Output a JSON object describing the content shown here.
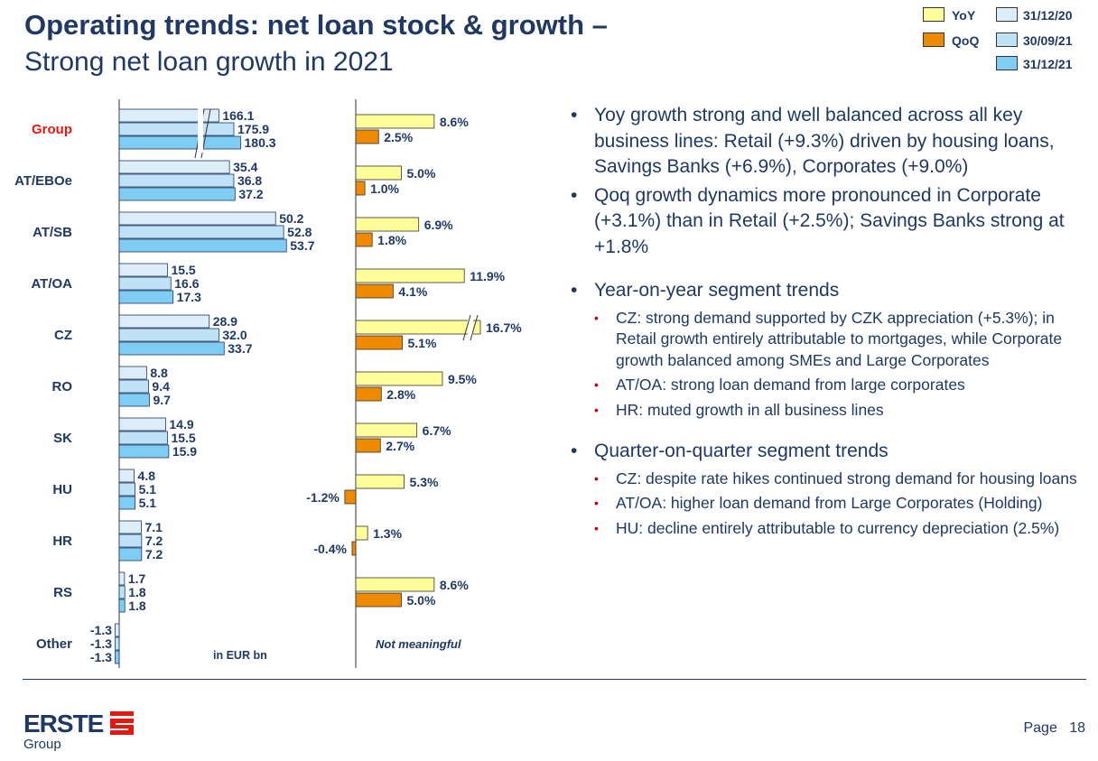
{
  "title": "Operating trends: net loan stock & growth –",
  "subtitle": "Strong net loan growth in 2021",
  "legend": {
    "yoy": "YoY",
    "qoq": "QoQ",
    "d1": "31/12/20",
    "d2": "30/09/21",
    "d3": "31/12/21"
  },
  "colors": {
    "yoy": "#ffff99",
    "qoq": "#ed8a00",
    "d1": "#ddeef8",
    "d2": "#bfe2f6",
    "d3": "#7fcdf2",
    "segment_highlight": "#e8170e",
    "text": "#1f3864"
  },
  "chart_data": [
    {
      "type": "bar",
      "orientation": "horizontal",
      "unit_label": "in EUR bn",
      "categories": [
        "Group",
        "AT/EBOe",
        "AT/SB",
        "AT/OA",
        "CZ",
        "RO",
        "SK",
        "HU",
        "HR",
        "RS",
        "Other"
      ],
      "series": [
        {
          "name": "31/12/20",
          "values": [
            166.1,
            35.4,
            50.2,
            15.5,
            28.9,
            8.8,
            14.9,
            4.8,
            7.1,
            1.7,
            -1.3
          ]
        },
        {
          "name": "30/09/21",
          "values": [
            175.9,
            36.8,
            52.8,
            16.6,
            32.0,
            9.4,
            15.5,
            5.1,
            7.2,
            1.8,
            -1.3
          ]
        },
        {
          "name": "31/12/21",
          "values": [
            180.3,
            37.2,
            53.7,
            17.3,
            33.7,
            9.7,
            15.9,
            5.1,
            7.2,
            1.8,
            -1.3
          ]
        }
      ],
      "labels": [
        [
          "166.1",
          "175.9",
          "180.3"
        ],
        [
          "35.4",
          "36.8",
          "37.2"
        ],
        [
          "50.2",
          "52.8",
          "53.7"
        ],
        [
          "15.5",
          "16.6",
          "17.3"
        ],
        [
          "28.9",
          "32.0",
          "33.7"
        ],
        [
          "8.8",
          "9.4",
          "9.7"
        ],
        [
          "14.9",
          "15.5",
          "15.9"
        ],
        [
          "4.8",
          "5.1",
          "5.1"
        ],
        [
          "7.1",
          "7.2",
          "7.2"
        ],
        [
          "1.7",
          "1.8",
          "1.8"
        ],
        [
          "-1.3",
          "-1.3",
          "-1.3"
        ]
      ],
      "axis_break_category": "Group"
    },
    {
      "type": "bar",
      "orientation": "horizontal",
      "categories": [
        "Group",
        "AT/EBOe",
        "AT/SB",
        "AT/OA",
        "CZ",
        "RO",
        "SK",
        "HU",
        "HR",
        "RS",
        "Other"
      ],
      "series": [
        {
          "name": "YoY",
          "values": [
            8.6,
            5.0,
            6.9,
            11.9,
            16.7,
            9.5,
            6.7,
            5.3,
            1.3,
            8.6,
            null
          ]
        },
        {
          "name": "QoQ",
          "values": [
            2.5,
            1.0,
            1.8,
            4.1,
            5.1,
            2.8,
            2.7,
            -1.2,
            -0.4,
            5.0,
            null
          ]
        }
      ],
      "labels": [
        [
          "8.6%",
          "2.5%"
        ],
        [
          "5.0%",
          "1.0%"
        ],
        [
          "6.9%",
          "1.8%"
        ],
        [
          "11.9%",
          "4.1%"
        ],
        [
          "16.7%",
          "5.1%"
        ],
        [
          "9.5%",
          "2.8%"
        ],
        [
          "6.7%",
          "2.7%"
        ],
        [
          "5.3%",
          "-1.2%"
        ],
        [
          "1.3%",
          "-0.4%"
        ],
        [
          "8.6%",
          "5.0%"
        ],
        [
          null,
          null
        ]
      ],
      "other_note": "Not meaningful",
      "axis_break_category": "CZ"
    }
  ],
  "bullets": [
    {
      "level": 1,
      "text": "Yoy growth strong and well balanced across all key business lines: Retail (+9.3%) driven by housing loans, Savings Banks (+6.9%), Corporates (+9.0%)"
    },
    {
      "level": 1,
      "text": "Qoq growth dynamics more pronounced in Corporate (+3.1%) than in Retail (+2.5%); Savings Banks strong at +1.8%"
    },
    {
      "level": 1,
      "text": "Year-on-year segment trends",
      "gap": true
    },
    {
      "level": 2,
      "text": "CZ: strong demand supported by CZK appreciation (+5.3%); in Retail growth entirely attributable to mortgages, while Corporate growth balanced among SMEs and Large Corporates"
    },
    {
      "level": 2,
      "text": "AT/OA: strong loan demand from large corporates"
    },
    {
      "level": 2,
      "text": "HR: muted growth in all business lines"
    },
    {
      "level": 1,
      "text": "Quarter-on-quarter segment trends",
      "gap": true
    },
    {
      "level": 2,
      "text": "CZ: despite rate hikes continued strong demand for housing loans"
    },
    {
      "level": 2,
      "text": "AT/OA: higher loan demand from Large Corporates (Holding)"
    },
    {
      "level": 2,
      "text": "HU: decline entirely attributable to currency depreciation (2.5%)"
    }
  ],
  "footer": {
    "logo_text": "ERSTE",
    "logo_sub": "Group",
    "page_label": "Page",
    "page_number": "18"
  }
}
